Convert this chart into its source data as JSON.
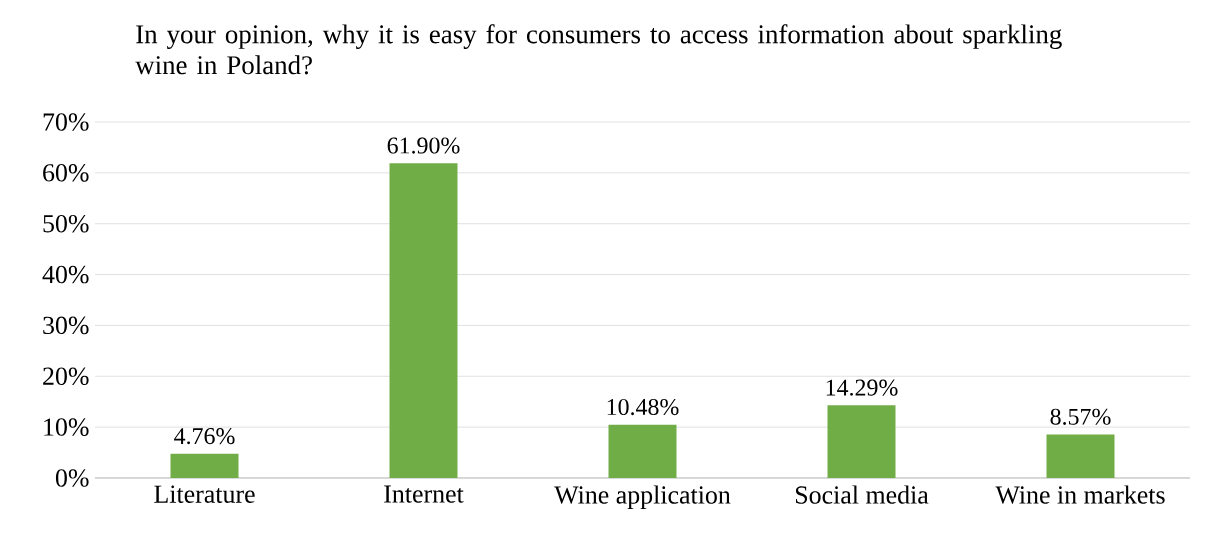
{
  "chart_data": {
    "type": "bar",
    "title": "In your opinion, why it is easy for consumers to access information about sparkling wine in Poland?",
    "categories": [
      "Literature",
      "Internet",
      "Wine application",
      "Social media",
      "Wine in markets"
    ],
    "values": [
      4.76,
      61.9,
      10.48,
      14.29,
      8.57
    ],
    "value_labels": [
      "4.76%",
      "61.90%",
      "10.48%",
      "14.29%",
      "8.57%"
    ],
    "color": "#70ad47",
    "ylim": [
      0,
      70
    ],
    "yticks": [
      {
        "value": 0,
        "label": "0%"
      },
      {
        "value": 10,
        "label": "10%"
      },
      {
        "value": 20,
        "label": "20%"
      },
      {
        "value": 30,
        "label": "30%"
      },
      {
        "value": 40,
        "label": "40%"
      },
      {
        "value": 50,
        "label": "50%"
      },
      {
        "value": 60,
        "label": "60%"
      },
      {
        "value": 70,
        "label": "70%"
      }
    ],
    "grid": "y"
  }
}
